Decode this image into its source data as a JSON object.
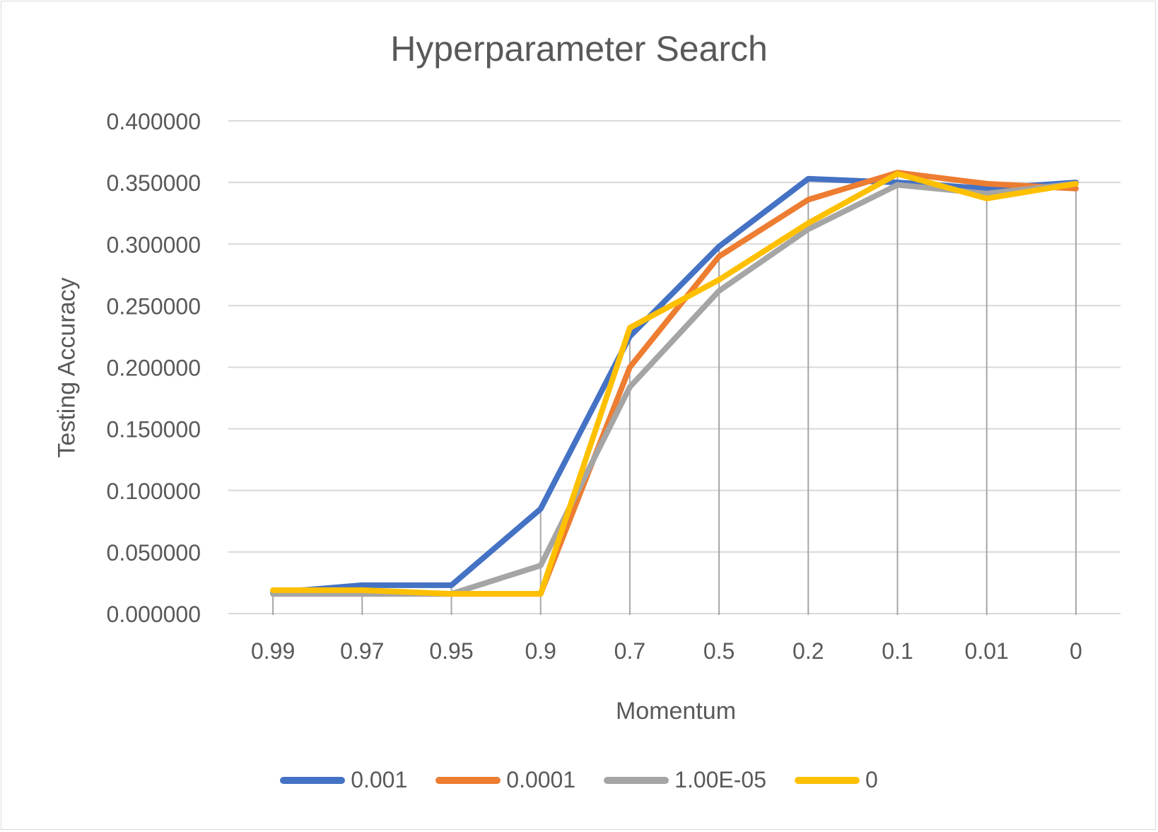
{
  "chart_data": {
    "type": "line",
    "title": "Hyperparameter Search",
    "xlabel": "Momentum",
    "ylabel": "Testing Accuracy",
    "categories": [
      "0.99",
      "0.97",
      "0.95",
      "0.9",
      "0.7",
      "0.5",
      "0.2",
      "0.1",
      "0.01",
      "0"
    ],
    "ylim": [
      0,
      0.4
    ],
    "yticks": [
      "0.000000",
      "0.050000",
      "0.100000",
      "0.150000",
      "0.200000",
      "0.250000",
      "0.300000",
      "0.350000",
      "0.400000"
    ],
    "grid": true,
    "legend_position": "bottom",
    "series": [
      {
        "name": "0.001",
        "color": "#4472c4",
        "values": [
          0.017,
          0.023,
          0.023,
          0.085,
          0.225,
          0.298,
          0.353,
          0.35,
          0.345,
          0.35
        ]
      },
      {
        "name": "0.0001",
        "color": "#ed7d31",
        "values": [
          0.016,
          0.016,
          0.016,
          0.016,
          0.2,
          0.29,
          0.336,
          0.358,
          0.349,
          0.345
        ]
      },
      {
        "name": "1.00E-05",
        "color": "#a5a5a5",
        "values": [
          0.016,
          0.016,
          0.016,
          0.039,
          0.184,
          0.262,
          0.312,
          0.348,
          0.341,
          0.349
        ]
      },
      {
        "name": "0",
        "color": "#ffc000",
        "values": [
          0.019,
          0.019,
          0.016,
          0.016,
          0.232,
          0.271,
          0.317,
          0.357,
          0.337,
          0.349
        ]
      }
    ]
  }
}
